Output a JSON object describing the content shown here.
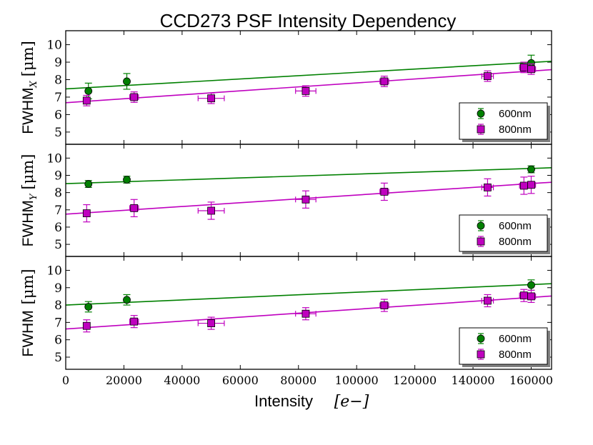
{
  "chart_data": {
    "type": "scatter",
    "title": "CCD273 PSF Intensity Dependency",
    "xlabel": "Intensity",
    "xlabel_unit": "[e−]",
    "xlim": [
      0,
      167000
    ],
    "xticks": [
      0,
      20000,
      40000,
      60000,
      80000,
      100000,
      120000,
      140000,
      160000
    ],
    "ylim": [
      4.3,
      10.8
    ],
    "yticks": [
      5,
      6,
      7,
      8,
      9,
      10
    ],
    "colors": {
      "600nm": "#008000",
      "800nm": "#bf00bf"
    },
    "legend_location": "lower-right",
    "panels": [
      {
        "ylabel": "FWHM",
        "ylabel_sub": "X",
        "ylabel_unit": "[μm]",
        "series": [
          {
            "name": "600nm",
            "marker": "circle",
            "points": [
              {
                "x": 7800,
                "y": 7.35,
                "yerr": 0.45,
                "xerr": 0
              },
              {
                "x": 21000,
                "y": 7.9,
                "yerr": 0.45,
                "xerr": 0
              },
              {
                "x": 160000,
                "y": 8.95,
                "yerr": 0.45,
                "xerr": 0
              }
            ],
            "fit": [
              [
                0,
                7.47
              ],
              [
                167000,
                9.05
              ]
            ]
          },
          {
            "name": "800nm",
            "marker": "square",
            "points": [
              {
                "x": 7200,
                "y": 6.8,
                "yerr": 0.3,
                "xerr": 0
              },
              {
                "x": 23500,
                "y": 7.0,
                "yerr": 0.3,
                "xerr": 1500
              },
              {
                "x": 50000,
                "y": 6.93,
                "yerr": 0.3,
                "xerr": 4500
              },
              {
                "x": 82500,
                "y": 7.35,
                "yerr": 0.3,
                "xerr": 3500
              },
              {
                "x": 109500,
                "y": 7.9,
                "yerr": 0.3,
                "xerr": 1500
              },
              {
                "x": 145000,
                "y": 8.2,
                "yerr": 0.3,
                "xerr": 2000
              },
              {
                "x": 157500,
                "y": 8.7,
                "yerr": 0.3,
                "xerr": 1500
              },
              {
                "x": 160000,
                "y": 8.6,
                "yerr": 0.3,
                "xerr": 1500
              }
            ],
            "fit": [
              [
                0,
                6.68
              ],
              [
                167000,
                8.57
              ]
            ]
          }
        ]
      },
      {
        "ylabel": "FWHM",
        "ylabel_sub": "Y",
        "ylabel_unit": "[μm]",
        "series": [
          {
            "name": "600nm",
            "marker": "circle",
            "points": [
              {
                "x": 7800,
                "y": 8.5,
                "yerr": 0.2,
                "xerr": 0
              },
              {
                "x": 21000,
                "y": 8.75,
                "yerr": 0.2,
                "xerr": 0
              },
              {
                "x": 160000,
                "y": 9.35,
                "yerr": 0.2,
                "xerr": 0
              }
            ],
            "fit": [
              [
                0,
                8.52
              ],
              [
                167000,
                9.44
              ]
            ]
          },
          {
            "name": "800nm",
            "marker": "square",
            "points": [
              {
                "x": 7200,
                "y": 6.8,
                "yerr": 0.5,
                "xerr": 0
              },
              {
                "x": 23500,
                "y": 7.1,
                "yerr": 0.5,
                "xerr": 1500
              },
              {
                "x": 50000,
                "y": 6.95,
                "yerr": 0.5,
                "xerr": 4500
              },
              {
                "x": 82500,
                "y": 7.6,
                "yerr": 0.5,
                "xerr": 3500
              },
              {
                "x": 109500,
                "y": 8.05,
                "yerr": 0.5,
                "xerr": 1500
              },
              {
                "x": 145000,
                "y": 8.3,
                "yerr": 0.5,
                "xerr": 2000
              },
              {
                "x": 157500,
                "y": 8.4,
                "yerr": 0.5,
                "xerr": 1500
              },
              {
                "x": 160000,
                "y": 8.45,
                "yerr": 0.5,
                "xerr": 1500
              }
            ],
            "fit": [
              [
                0,
                6.75
              ],
              [
                167000,
                8.6
              ]
            ]
          }
        ]
      },
      {
        "ylabel": "FWHM",
        "ylabel_sub": "",
        "ylabel_unit": "[μm]",
        "series": [
          {
            "name": "600nm",
            "marker": "circle",
            "points": [
              {
                "x": 7800,
                "y": 7.9,
                "yerr": 0.3,
                "xerr": 0
              },
              {
                "x": 21000,
                "y": 8.3,
                "yerr": 0.3,
                "xerr": 0
              },
              {
                "x": 160000,
                "y": 9.15,
                "yerr": 0.3,
                "xerr": 0
              }
            ],
            "fit": [
              [
                0,
                8.0
              ],
              [
                167000,
                9.23
              ]
            ]
          },
          {
            "name": "800nm",
            "marker": "square",
            "points": [
              {
                "x": 7200,
                "y": 6.8,
                "yerr": 0.35,
                "xerr": 0
              },
              {
                "x": 23500,
                "y": 7.05,
                "yerr": 0.35,
                "xerr": 1500
              },
              {
                "x": 50000,
                "y": 6.95,
                "yerr": 0.35,
                "xerr": 4500
              },
              {
                "x": 82500,
                "y": 7.5,
                "yerr": 0.35,
                "xerr": 3500
              },
              {
                "x": 109500,
                "y": 7.98,
                "yerr": 0.35,
                "xerr": 1500
              },
              {
                "x": 145000,
                "y": 8.25,
                "yerr": 0.35,
                "xerr": 2000
              },
              {
                "x": 157500,
                "y": 8.55,
                "yerr": 0.35,
                "xerr": 1500
              },
              {
                "x": 160000,
                "y": 8.5,
                "yerr": 0.35,
                "xerr": 1500
              }
            ],
            "fit": [
              [
                0,
                6.62
              ],
              [
                167000,
                8.52
              ]
            ]
          }
        ]
      }
    ]
  }
}
